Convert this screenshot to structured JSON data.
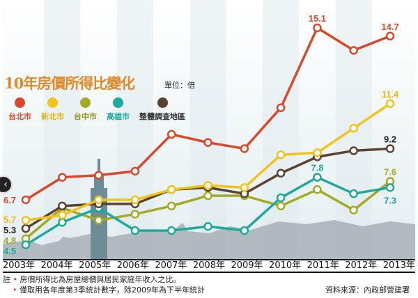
{
  "chart_data": {
    "type": "line",
    "title": "10年房價所得比變化",
    "unit": "單位：倍",
    "categories": [
      "2003年",
      "2004年",
      "2005年",
      "2006年",
      "2007年",
      "2008年",
      "2009年",
      "2010年",
      "2011年",
      "2012年",
      "2013年"
    ],
    "series": [
      {
        "name": "台北市",
        "color": "#d9482b",
        "values": [
          6.7,
          7.8,
          7.9,
          8.1,
          9.9,
          9.5,
          9.2,
          11.2,
          15.1,
          14.0,
          14.7
        ],
        "labels": {
          "0": "6.7",
          "8": "15.1",
          "10": "14.7"
        }
      },
      {
        "name": "新北市",
        "color": "#f0c419",
        "values": [
          5.7,
          5.95,
          6.7,
          6.7,
          7.2,
          7.4,
          7.3,
          8.9,
          9.0,
          10.2,
          11.4
        ],
        "labels": {
          "0": "5.7",
          "10": "11.4"
        }
      },
      {
        "name": "台中市",
        "color": "#a3ab22",
        "values": [
          4.8,
          6.3,
          5.7,
          6.0,
          6.4,
          6.9,
          6.9,
          6.4,
          7.2,
          6.2,
          7.6
        ],
        "labels": {
          "0": "4.8",
          "10": "7.6"
        }
      },
      {
        "name": "高雄市",
        "color": "#1fa99a",
        "values": [
          4.5,
          5.6,
          6.3,
          5.2,
          5.2,
          5.4,
          5.2,
          6.8,
          7.8,
          7.0,
          7.3
        ],
        "labels": {
          "0": "4.5",
          "8": "7.8",
          "10": "7.3"
        }
      },
      {
        "name": "整體調查地區",
        "color": "#5a4130",
        "values": [
          5.3,
          6.4,
          6.5,
          6.5,
          7.2,
          7.3,
          7.0,
          8.0,
          8.8,
          9.1,
          9.2
        ],
        "labels": {
          "0": "5.3",
          "10": "9.2"
        }
      }
    ]
  },
  "notes": {
    "prefix": "註",
    "line1": "房價所得比為房屋總價與居民家庭年收入之比。",
    "line2": "僅取用各年度第3季統計數字，除2009年為下半年統計"
  },
  "source": "資料來源：內政部營建署",
  "nav": {
    "prev_icon": "‹"
  }
}
